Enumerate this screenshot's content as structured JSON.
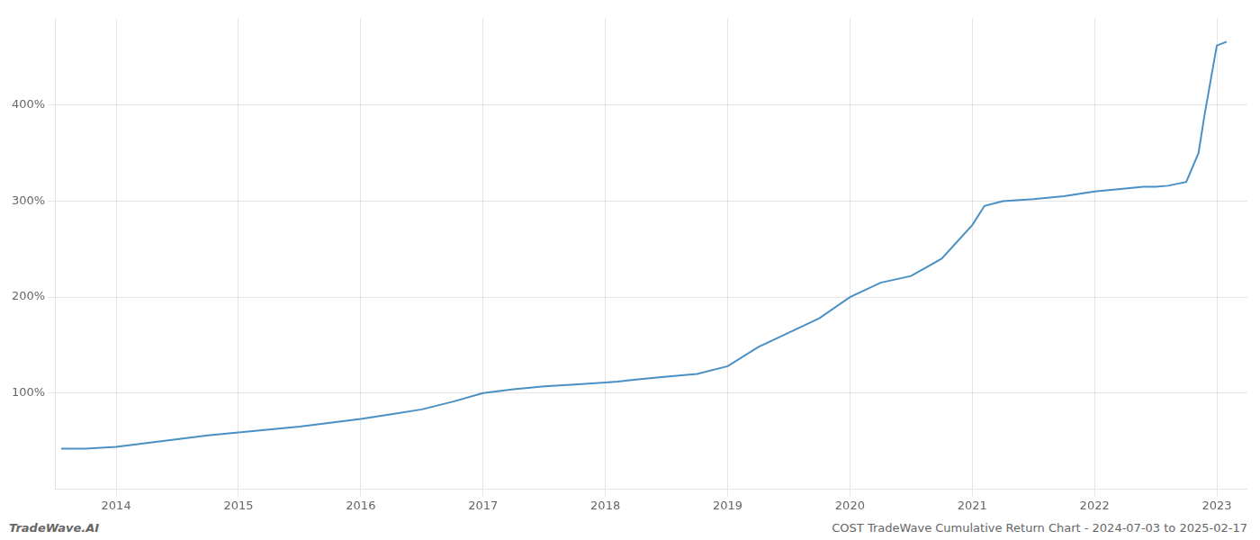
{
  "chart_data": {
    "type": "line",
    "title": "COST TradeWave Cumulative Return Chart - 2024-07-03 to 2025-02-17",
    "annotations": [
      "TradeWave.AI"
    ],
    "color": "#4a90c4",
    "grid": true,
    "x": [
      2013.55,
      2013.75,
      2014.0,
      2014.25,
      2014.5,
      2014.75,
      2015.0,
      2015.25,
      2015.5,
      2015.75,
      2016.0,
      2016.25,
      2016.5,
      2016.75,
      2017.0,
      2017.25,
      2017.5,
      2017.75,
      2018.0,
      2018.1,
      2018.25,
      2018.5,
      2018.75,
      2019.0,
      2019.25,
      2019.5,
      2019.75,
      2020.0,
      2020.25,
      2020.5,
      2020.75,
      2021.0,
      2021.1,
      2021.25,
      2021.5,
      2021.75,
      2022.0,
      2022.25,
      2022.4,
      2022.5,
      2022.6,
      2022.75,
      2022.85,
      2022.9,
      2023.0,
      2023.08
    ],
    "values": [
      42,
      42,
      44,
      48,
      52,
      56,
      59,
      62,
      65,
      69,
      73,
      78,
      83,
      91,
      100,
      104,
      107,
      109,
      111,
      112,
      114,
      117,
      120,
      128,
      148,
      163,
      178,
      200,
      215,
      222,
      240,
      275,
      295,
      300,
      302,
      305,
      310,
      313,
      315,
      315,
      316,
      320,
      350,
      390,
      462,
      466
    ],
    "xlim": [
      2013.5,
      2023.25
    ],
    "ylim": [
      0,
      490
    ],
    "xticks": [
      2014,
      2015,
      2016,
      2017,
      2018,
      2019,
      2020,
      2021,
      2022,
      2023
    ],
    "yticks": [
      {
        "value": 100,
        "label": "100%"
      },
      {
        "value": 200,
        "label": "200%"
      },
      {
        "value": 300,
        "label": "300%"
      },
      {
        "value": 400,
        "label": "400%"
      }
    ]
  }
}
